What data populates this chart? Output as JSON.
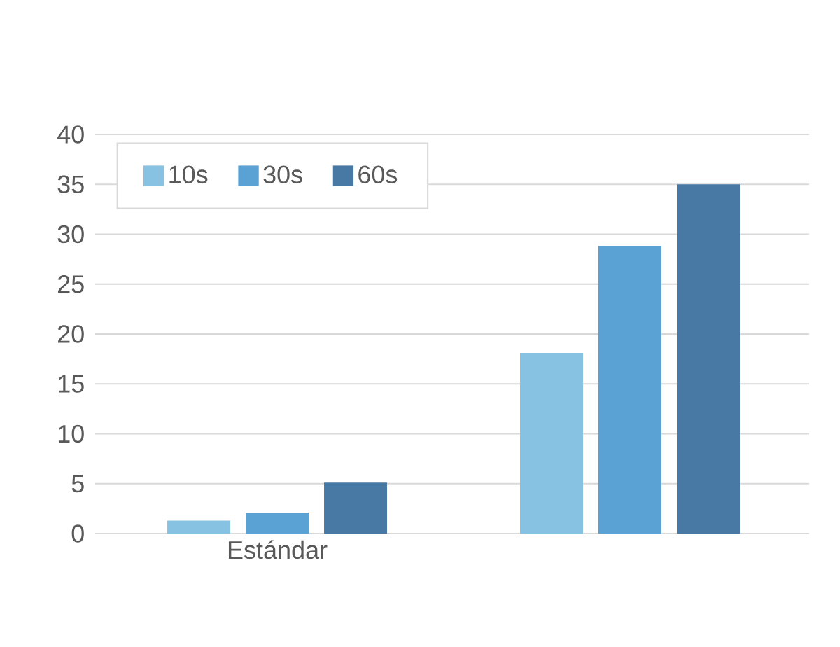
{
  "chart_data": {
    "type": "bar",
    "categories": [
      "Estándar",
      null
    ],
    "series": [
      {
        "name": "10s",
        "color": "#88c2e2",
        "values": [
          1.3,
          18.1
        ]
      },
      {
        "name": "30s",
        "color": "#5ba2d4",
        "values": [
          2.1,
          28.8
        ]
      },
      {
        "name": "60s",
        "color": "#4878a4",
        "values": [
          5.1,
          35
        ]
      }
    ],
    "ylim": [
      0,
      40
    ],
    "yticks": [
      0,
      5,
      10,
      15,
      20,
      25,
      30,
      35,
      40
    ],
    "grid": "y",
    "legend": "top left"
  }
}
